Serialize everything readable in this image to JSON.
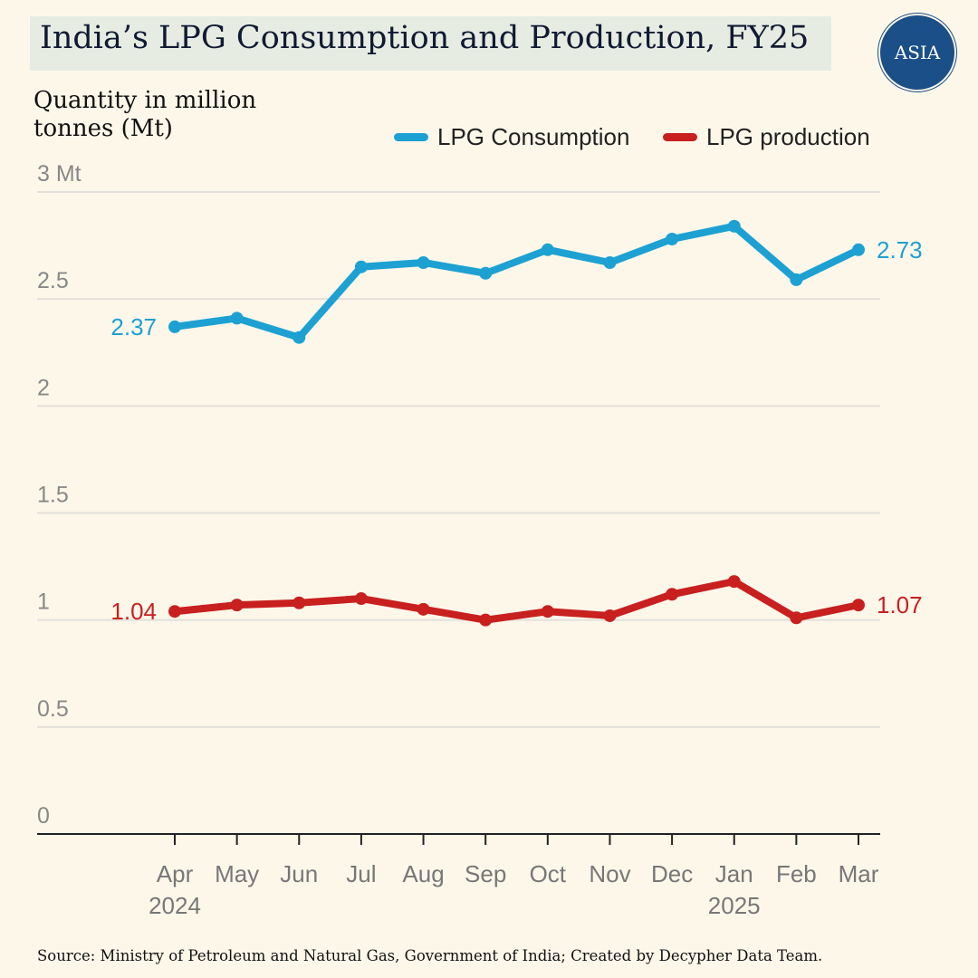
{
  "header": {
    "title": "India’s LPG Consumption and Production, FY25",
    "logo_text": "ASIA"
  },
  "source": "Source: Ministry of Petroleum and Natural Gas, Government of India; Created by Decypher Data Team.",
  "chart_data": {
    "type": "line",
    "title": "India’s LPG Consumption and Production, FY25",
    "ylabel": "Quantity in million tonnes (Mt)",
    "xlabel": "",
    "ylim": [
      0,
      3
    ],
    "yticks": [
      {
        "value": 0,
        "label": "0"
      },
      {
        "value": 0.5,
        "label": "0.5"
      },
      {
        "value": 1,
        "label": "1"
      },
      {
        "value": 1.5,
        "label": "1.5"
      },
      {
        "value": 2,
        "label": "2"
      },
      {
        "value": 2.5,
        "label": "2.5"
      },
      {
        "value": 3,
        "label": "3 Mt"
      }
    ],
    "categories": [
      "Apr",
      "May",
      "Jun",
      "Jul",
      "Aug",
      "Sep",
      "Oct",
      "Nov",
      "Dec",
      "Jan",
      "Feb",
      "Mar"
    ],
    "year_labels": [
      {
        "index": 0,
        "label": "2024"
      },
      {
        "index": 9,
        "label": "2025"
      }
    ],
    "grid": true,
    "legend_position": "top-right",
    "series": [
      {
        "name": "LPG Consumption",
        "color": "#1da1d2",
        "values": [
          2.37,
          2.41,
          2.32,
          2.65,
          2.67,
          2.62,
          2.73,
          2.67,
          2.78,
          2.84,
          2.59,
          2.73
        ],
        "start_label": "2.37",
        "end_label": "2.73"
      },
      {
        "name": "LPG production",
        "color": "#c8201f",
        "values": [
          1.04,
          1.07,
          1.08,
          1.1,
          1.05,
          1.0,
          1.04,
          1.02,
          1.12,
          1.18,
          1.01,
          1.07
        ],
        "start_label": "1.04",
        "end_label": "1.07"
      }
    ]
  }
}
